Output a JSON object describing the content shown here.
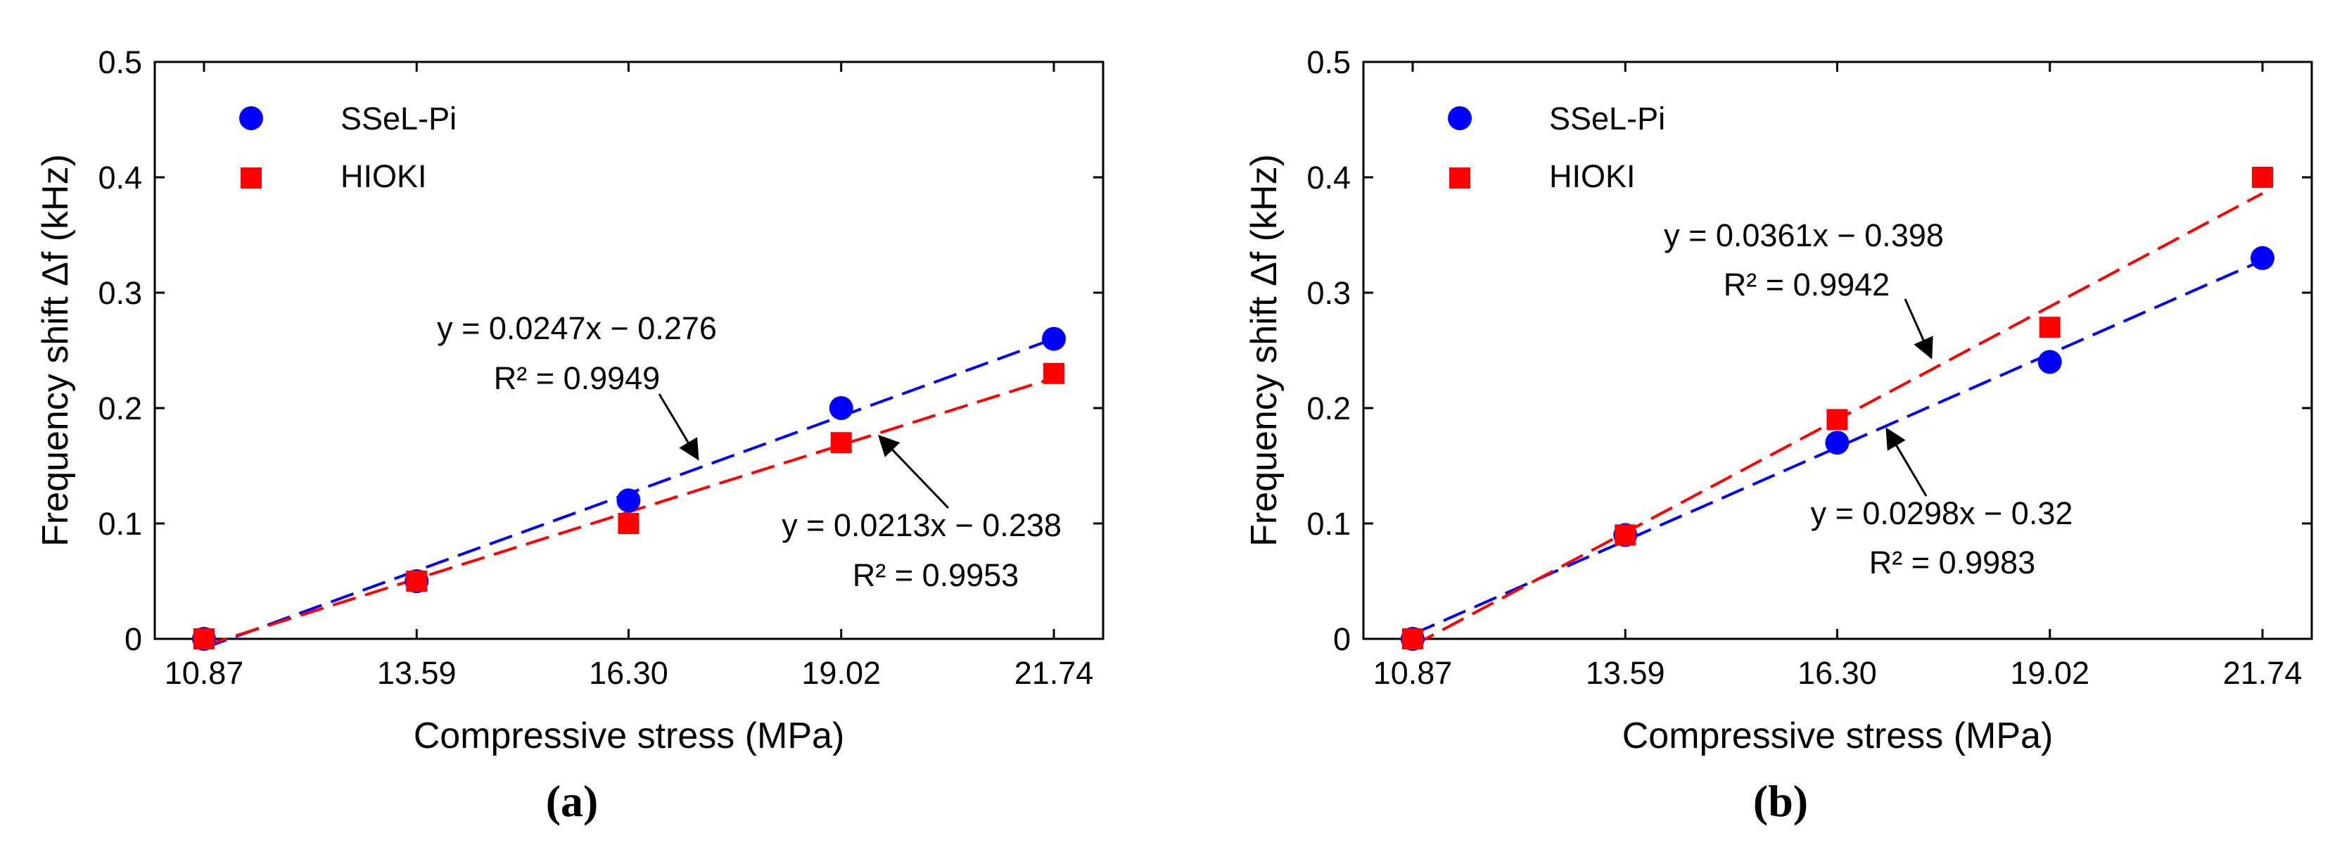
{
  "chart_data": [
    {
      "type": "scatter",
      "panel_label": "(a)",
      "xlabel": "Compressive stress (MPa)",
      "ylabel": "Frequency shift  Δf (kHz)",
      "categories": [
        "10.87",
        "13.59",
        "16.30",
        "19.02",
        "21.74"
      ],
      "x": [
        10.87,
        13.59,
        16.3,
        19.02,
        21.74
      ],
      "xlim": [
        10.87,
        21.74
      ],
      "ylim": [
        0,
        0.5
      ],
      "yticks": [
        "0",
        "0.1",
        "0.2",
        "0.3",
        "0.4",
        "0.5"
      ],
      "grid": false,
      "legend": "top-left",
      "series": [
        {
          "name": "SSeL-Pi",
          "marker": "circle",
          "color": "#0000ff",
          "values": [
            0,
            0.05,
            0.12,
            0.2,
            0.26
          ]
        },
        {
          "name": "HIOKI",
          "marker": "square",
          "color": "#ff0000",
          "values": [
            0,
            0.05,
            0.1,
            0.17,
            0.23
          ]
        }
      ],
      "fits": [
        {
          "series": "SSeL-Pi",
          "color": "#0000ff",
          "equation": "y = 0.0247x − 0.276",
          "r2": "R² = 0.9949"
        },
        {
          "series": "HIOKI",
          "color": "#ff0000",
          "equation": "y = 0.0213x − 0.238",
          "r2": "R² = 0.9953"
        }
      ]
    },
    {
      "type": "scatter",
      "panel_label": "(b)",
      "xlabel": "Compressive stress (MPa)",
      "ylabel": "Frequency shift  Δf (kHz)",
      "categories": [
        "10.87",
        "13.59",
        "16.30",
        "19.02",
        "21.74"
      ],
      "x": [
        10.87,
        13.59,
        16.3,
        19.02,
        21.74
      ],
      "xlim": [
        10.87,
        21.74
      ],
      "ylim": [
        0,
        0.5
      ],
      "yticks": [
        "0",
        "0.1",
        "0.2",
        "0.3",
        "0.4",
        "0.5"
      ],
      "grid": false,
      "legend": "top-left",
      "series": [
        {
          "name": "SSeL-Pi",
          "marker": "circle",
          "color": "#0000ff",
          "values": [
            0,
            0.09,
            0.17,
            0.24,
            0.33
          ]
        },
        {
          "name": "HIOKI",
          "marker": "square",
          "color": "#ff0000",
          "values": [
            0,
            0.09,
            0.19,
            0.27,
            0.4
          ]
        }
      ],
      "fits": [
        {
          "series": "HIOKI",
          "color": "#ff0000",
          "equation": "y = 0.0361x − 0.398",
          "r2": "R² = 0.9942"
        },
        {
          "series": "SSeL-Pi",
          "color": "#0000ff",
          "equation": "y = 0.0298x − 0.32",
          "r2": "R² = 0.9983"
        }
      ]
    }
  ]
}
